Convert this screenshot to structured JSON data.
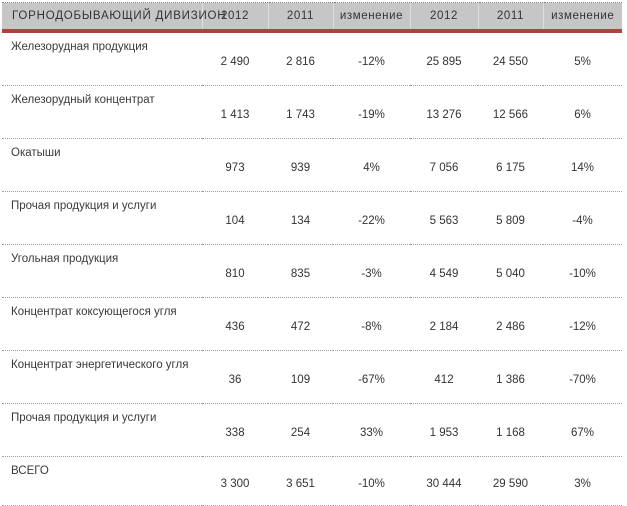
{
  "table": {
    "title": "ГОРНОДОБЫВАЮЩИЙ ДИВИЗИОН",
    "colors": {
      "header_background": "#c6c6c6",
      "accent_red_line": "#a5453b",
      "row_separator": "#9f9f9f",
      "text": "#333333"
    },
    "columns": [
      "2012",
      "2011",
      "изменение",
      "2012",
      "2011",
      "изменение"
    ],
    "rows": [
      {
        "label": "Железорудная продукция",
        "cells": [
          "2 490",
          "2 816",
          "-12%",
          "25 895",
          "24 550",
          "5%"
        ]
      },
      {
        "label": "Железорудный концентрат",
        "cells": [
          "1 413",
          "1 743",
          "-19%",
          "13 276",
          "12 566",
          "6%"
        ]
      },
      {
        "label": "Окатыши",
        "cells": [
          "973",
          "939",
          "4%",
          "7 056",
          "6 175",
          "14%"
        ]
      },
      {
        "label": "Прочая продукция и услуги",
        "cells": [
          "104",
          "134",
          "-22%",
          "5 563",
          "5 809",
          "-4%"
        ]
      },
      {
        "label": "Угольная продукция",
        "cells": [
          "810",
          "835",
          "-3%",
          "4 549",
          "5 040",
          "-10%"
        ]
      },
      {
        "label": "Концентрат коксующегося угля",
        "cells": [
          "436",
          "472",
          "-8%",
          "2 184",
          "2 486",
          "-12%"
        ]
      },
      {
        "label": "Концентрат энергетического угля",
        "cells": [
          "36",
          "109",
          "-67%",
          "412",
          "1 386",
          "-70%"
        ]
      },
      {
        "label": "Прочая продукция и услуги",
        "cells": [
          "338",
          "254",
          "33%",
          "1 953",
          "1 168",
          "67%"
        ]
      },
      {
        "label": "ВСЕГО",
        "cells": [
          "3 300",
          "3 651",
          "-10%",
          "30 444",
          "29 590",
          "3%"
        ]
      }
    ]
  }
}
